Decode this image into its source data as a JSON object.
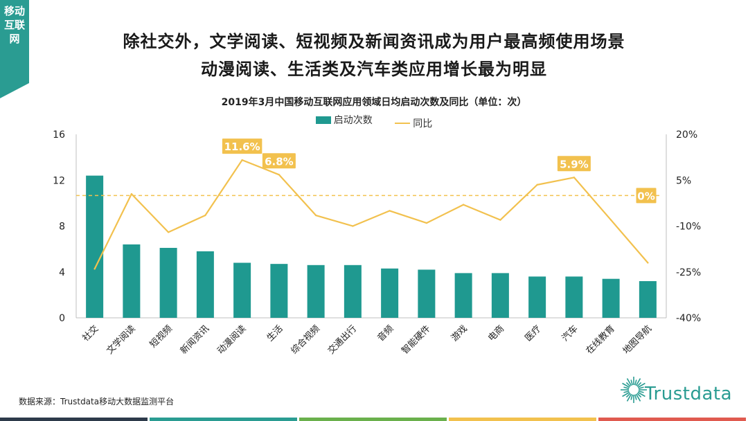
{
  "side_tab": {
    "label": "移动互联网"
  },
  "headline": {
    "line1": "除社交外，文学阅读、短视频及新闻资讯成为用户最高频使用场景",
    "line2": "动漫阅读、生活类及汽车类应用增长最为明显"
  },
  "source": "数据来源：Trustdata移动大数据监测平台",
  "logo": {
    "text": "Trustdata"
  },
  "colors": {
    "bar": "#1f9990",
    "line": "#f2c14e",
    "label_bg": "#f2c14e",
    "dashed": "#f2c14e",
    "axis_text": "#222222",
    "footer": [
      "#2d3a4a",
      "#2a9c92",
      "#6ab04c",
      "#f2c14e",
      "#e05a4f"
    ]
  },
  "chart_data": {
    "type": "bar+line",
    "title": "2019年3月中国移动互联网应用领域日均启动次数及同比（单位：次）",
    "legend": [
      "启动次数",
      "同比"
    ],
    "categories": [
      "社交",
      "文学阅读",
      "短视频",
      "新闻资讯",
      "动漫阅读",
      "生活",
      "综合视频",
      "交通出行",
      "音频",
      "智能硬件",
      "游戏",
      "电商",
      "医疗",
      "汽车",
      "在线教育",
      "地图导航"
    ],
    "series": [
      {
        "name": "启动次数",
        "type": "bar",
        "axis": "left",
        "values": [
          12.4,
          6.4,
          6.1,
          5.8,
          4.8,
          4.7,
          4.6,
          4.6,
          4.3,
          4.2,
          3.9,
          3.9,
          3.6,
          3.6,
          3.4,
          3.2
        ]
      },
      {
        "name": "同比",
        "type": "line",
        "axis": "right",
        "values": [
          -24.0,
          0.5,
          -12.0,
          -6.5,
          11.6,
          6.8,
          -6.5,
          -10.0,
          -5.0,
          -9.0,
          -3.0,
          -8.0,
          3.5,
          5.9,
          -8.0,
          -22.0
        ]
      }
    ],
    "left_axis": {
      "min": 0,
      "max": 16,
      "ticks": [
        0,
        4,
        8,
        12,
        16
      ],
      "tick_labels": [
        "0",
        "4",
        "8",
        "12",
        "16"
      ]
    },
    "right_axis": {
      "min": -40,
      "max": 20,
      "ticks": [
        -40,
        -25,
        -10,
        5,
        20
      ],
      "tick_labels": [
        "-40%",
        "-25%",
        "-10%",
        "5%",
        "20%"
      ]
    },
    "reference_line": {
      "value": 0,
      "axis": "right",
      "label": "0%",
      "style": "dashed"
    },
    "annotations": [
      {
        "category_index": 4,
        "label": "11.6%"
      },
      {
        "category_index": 5,
        "label": "6.8%"
      },
      {
        "category_index": 13,
        "label": "5.9%"
      }
    ]
  }
}
